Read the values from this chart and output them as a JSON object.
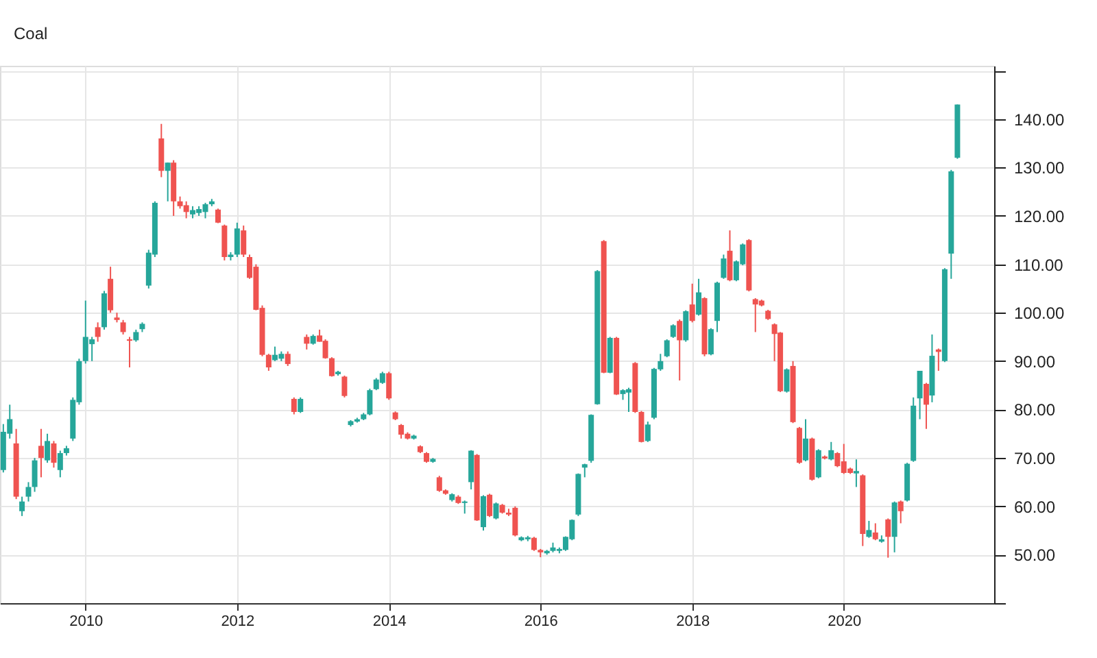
{
  "chart_data": {
    "type": "candlestick",
    "title": "Coal",
    "colors": [
      "#26a69a",
      "#26a69a",
      "#ef5350",
      "#26a69a",
      "#26a69a",
      "#26a69a",
      "#ef5350",
      "#26a69a",
      "#ef5350",
      "#26a69a",
      "#26a69a",
      "#26a69a",
      "#26a69a",
      "#26a69a",
      "#26a69a",
      "#ef5350",
      "#26a69a",
      "#ef5350",
      "#ef5350",
      "#ef5350",
      "#ef5350",
      "#26a69a",
      "#26a69a",
      "#26a69a",
      "#26a69a",
      "#ef5350",
      "#26a69a",
      "#ef5350",
      "#ef5350",
      "#ef5350",
      "#26a69a",
      "#26a69a",
      "#26a69a",
      "#26a69a",
      "#ef5350",
      "#ef5350",
      "#26a69a",
      "#26a69a",
      "#ef5350",
      "#ef5350",
      "#ef5350",
      "#ef5350",
      "#ef5350",
      "#26a69a",
      "#26a69a",
      "#ef5350",
      "#ef5350",
      "#26a69a",
      "#ef5350",
      "#26a69a",
      "#ef5350",
      "#ef5350",
      "#ef5350",
      "#26a69a",
      "#ef5350",
      "#26a69a",
      "#26a69a",
      "#26a69a",
      "#26a69a",
      "#26a69a",
      "#26a69a",
      "#ef5350",
      "#ef5350",
      "#ef5350",
      "#ef5350",
      "#26a69a",
      "#ef5350",
      "#ef5350",
      "#26a69a",
      "#ef5350",
      "#ef5350",
      "#26a69a",
      "#ef5350",
      "#26a69a",
      "#26a69a",
      "#ef5350",
      "#26a69a",
      "#ef5350",
      "#26a69a",
      "#ef5350",
      "#ef5350",
      "#ef5350",
      "#26a69a",
      "#26a69a",
      "#ef5350",
      "#ef5350",
      "#26a69a",
      "#26a69a",
      "#26a69a",
      "#26a69a",
      "#26a69a",
      "#26a69a",
      "#26a69a",
      "#26a69a",
      "#26a69a",
      "#ef5350",
      "#26a69a",
      "#ef5350",
      "#26a69a",
      "#26a69a",
      "#ef5350",
      "#ef5350",
      "#26a69a",
      "#26a69a",
      "#26a69a",
      "#26a69a",
      "#26a69a",
      "#ef5350",
      "#26a69a",
      "#ef5350",
      "#26a69a",
      "#ef5350",
      "#26a69a",
      "#26a69a",
      "#26a69a",
      "#ef5350",
      "#26a69a",
      "#26a69a",
      "#ef5350",
      "#ef5350",
      "#ef5350",
      "#ef5350",
      "#ef5350",
      "#ef5350",
      "#26a69a",
      "#ef5350",
      "#ef5350",
      "#26a69a",
      "#ef5350",
      "#26a69a",
      "#ef5350",
      "#26a69a",
      "#ef5350",
      "#ef5350",
      "#ef5350",
      "#26a69a",
      "#ef5350",
      "#26a69a",
      "#ef5350",
      "#26a69a",
      "#ef5350",
      "#26a69a",
      "#ef5350",
      "#26a69a",
      "#26a69a",
      "#26a69a",
      "#ef5350",
      "#26a69a",
      "#ef5350",
      "#26a69a",
      "#26a69a",
      "#26a69a"
    ],
    "x": [
      "2008-12",
      "2009-01",
      "2009-02",
      "2009-03",
      "2009-04",
      "2009-05",
      "2009-06",
      "2009-07",
      "2009-08",
      "2009-09",
      "2009-10",
      "2009-11",
      "2009-12",
      "2010-01",
      "2010-02",
      "2010-03",
      "2010-04",
      "2010-05",
      "2010-06",
      "2010-07",
      "2010-08",
      "2010-09",
      "2010-10",
      "2010-11",
      "2010-12",
      "2011-01",
      "2011-02",
      "2011-03",
      "2011-04",
      "2011-05",
      "2011-06",
      "2011-07",
      "2011-08",
      "2011-09",
      "2011-10",
      "2011-11",
      "2011-12",
      "2012-01",
      "2012-02",
      "2012-03",
      "2012-04",
      "2012-05",
      "2012-06",
      "2012-07",
      "2012-08",
      "2012-09",
      "2012-10",
      "2012-11",
      "2012-12",
      "2013-01",
      "2013-02",
      "2013-03",
      "2013-04",
      "2013-05",
      "2013-06",
      "2013-07",
      "2013-08",
      "2013-09",
      "2013-10",
      "2013-11",
      "2013-12",
      "2014-01",
      "2014-02",
      "2014-03",
      "2014-04",
      "2014-05",
      "2014-06",
      "2014-07",
      "2014-08",
      "2014-09",
      "2014-10",
      "2014-11",
      "2014-12",
      "2015-01",
      "2015-02",
      "2015-03",
      "2015-04",
      "2015-05",
      "2015-06",
      "2015-07",
      "2015-08",
      "2015-09",
      "2015-10",
      "2015-11",
      "2015-12",
      "2016-01",
      "2016-02",
      "2016-03",
      "2016-04",
      "2016-05",
      "2016-06",
      "2016-07",
      "2016-08",
      "2016-09",
      "2016-10",
      "2016-11",
      "2016-12",
      "2017-01",
      "2017-02",
      "2017-03",
      "2017-04",
      "2017-05",
      "2017-06",
      "2017-07",
      "2017-08",
      "2017-09",
      "2017-10",
      "2017-11",
      "2017-12",
      "2018-01",
      "2018-02",
      "2018-03",
      "2018-04",
      "2018-05",
      "2018-06",
      "2018-07",
      "2018-08",
      "2018-09",
      "2018-10",
      "2018-11",
      "2018-12",
      "2019-01",
      "2019-02",
      "2019-03",
      "2019-04",
      "2019-05",
      "2019-06",
      "2019-07",
      "2019-08",
      "2019-09",
      "2019-10",
      "2019-11",
      "2019-12",
      "2020-01",
      "2020-02",
      "2020-03",
      "2020-04",
      "2020-05",
      "2020-06",
      "2020-07",
      "2020-08",
      "2020-09",
      "2020-10",
      "2020-11",
      "2020-12",
      "2021-01",
      "2021-02",
      "2021-03",
      "2021-04",
      "2021-05",
      "2021-06",
      "2021-07"
    ],
    "ohlc": [
      [
        67.5,
        77,
        67,
        75.4
      ],
      [
        75,
        81,
        74,
        78
      ],
      [
        73,
        76,
        61.5,
        62
      ],
      [
        59,
        62,
        58,
        61
      ],
      [
        62,
        65,
        61,
        64
      ],
      [
        64,
        70,
        63,
        69.5
      ],
      [
        72.5,
        76,
        66,
        70
      ],
      [
        69.5,
        75,
        69,
        73.5
      ],
      [
        73,
        73.5,
        68,
        69
      ],
      [
        67.5,
        71.5,
        66,
        71
      ],
      [
        71,
        72.5,
        70.5,
        72
      ],
      [
        74,
        82.5,
        73.5,
        82
      ],
      [
        81.5,
        90.5,
        81,
        90
      ],
      [
        90,
        102.5,
        89.5,
        95
      ],
      [
        93.5,
        95,
        90,
        94.5
      ],
      [
        97,
        98,
        94,
        95
      ],
      [
        97,
        104.5,
        96.5,
        104
      ],
      [
        107,
        109.5,
        100,
        100.5
      ],
      [
        99,
        100,
        98,
        98.5
      ],
      [
        98,
        98.5,
        95.5,
        96
      ],
      [
        94.5,
        95,
        88.7,
        94.2
      ],
      [
        94.3,
        96.5,
        94,
        96
      ],
      [
        96.6,
        98,
        96,
        97.7
      ],
      [
        105.6,
        113,
        105,
        112.4
      ],
      [
        112,
        123,
        111.5,
        122.7
      ],
      [
        136,
        139,
        128,
        129.3
      ],
      [
        129.3,
        131,
        123,
        131
      ],
      [
        131,
        131.5,
        120,
        123
      ],
      [
        123,
        124,
        121.5,
        122
      ],
      [
        122.2,
        123,
        119.5,
        120.8
      ],
      [
        120.3,
        122,
        119.5,
        121.2
      ],
      [
        120.6,
        122,
        120,
        121.4
      ],
      [
        120.8,
        122.7,
        119.5,
        122.4
      ],
      [
        122.4,
        123.5,
        122,
        123
      ],
      [
        121.3,
        121.5,
        118.5,
        118.6
      ],
      [
        118,
        118.2,
        110.8,
        111.5
      ],
      [
        111.5,
        112.5,
        110.8,
        112
      ],
      [
        112,
        118.6,
        111.5,
        117.4
      ],
      [
        117,
        118,
        111.5,
        112
      ],
      [
        111.5,
        112,
        107,
        107.2
      ],
      [
        109.5,
        110,
        100.5,
        100.6
      ],
      [
        101,
        101.5,
        91,
        91.3
      ],
      [
        91.3,
        91.5,
        88,
        88.7
      ],
      [
        90.2,
        93,
        90,
        91.3
      ],
      [
        90.5,
        92,
        90,
        91.5
      ],
      [
        91.5,
        92,
        89,
        89.4
      ],
      [
        82.2,
        82.5,
        79,
        79.5
      ],
      [
        79.5,
        82.5,
        79.3,
        82.2
      ],
      [
        95,
        95.5,
        92.4,
        93.6
      ],
      [
        93.6,
        95.5,
        93.4,
        95.2
      ],
      [
        95.3,
        96.5,
        94,
        94
      ],
      [
        94.2,
        94.5,
        90.5,
        90.6
      ],
      [
        90.6,
        90.8,
        86.8,
        86.9
      ],
      [
        87.3,
        88,
        87,
        87.8
      ],
      [
        86.8,
        87,
        82.5,
        82.8
      ],
      [
        76.8,
        77.8,
        76.5,
        77.6
      ],
      [
        77.5,
        78.3,
        77.3,
        78
      ],
      [
        78,
        79.3,
        77.8,
        79
      ],
      [
        79,
        84.3,
        78.8,
        84
      ],
      [
        84.2,
        86.5,
        84,
        86.2
      ],
      [
        85.5,
        87.8,
        85.3,
        87.5
      ],
      [
        87.5,
        87.8,
        82,
        82.3
      ],
      [
        79.4,
        79.6,
        77.8,
        78
      ],
      [
        76.8,
        77,
        74,
        74.8
      ],
      [
        75,
        75.3,
        73.8,
        74
      ],
      [
        74,
        74.8,
        73.8,
        74.6
      ],
      [
        72.4,
        72.6,
        71,
        71.2
      ],
      [
        71,
        71.2,
        69,
        69.2
      ],
      [
        69.2,
        70,
        69,
        69.8
      ],
      [
        66,
        66.3,
        63,
        63.2
      ],
      [
        63.3,
        63.5,
        62.4,
        62.6
      ],
      [
        61.3,
        62.7,
        61,
        62.5
      ],
      [
        62,
        62.3,
        60.5,
        60.7
      ],
      [
        60.7,
        61.2,
        58.5,
        61
      ],
      [
        65,
        71.6,
        63.5,
        71.5
      ],
      [
        70.6,
        70.8,
        57,
        57.1
      ],
      [
        55.7,
        62.3,
        55,
        62.1
      ],
      [
        62.4,
        62.6,
        57.8,
        58
      ],
      [
        57.5,
        60.8,
        57.3,
        60.6
      ],
      [
        60.3,
        60.5,
        58.5,
        58.7
      ],
      [
        58.7,
        59.5,
        58,
        58.3
      ],
      [
        59.7,
        60,
        53.8,
        54
      ],
      [
        53,
        53.8,
        52.8,
        53.6
      ],
      [
        53.2,
        53.9,
        52.8,
        53.6
      ],
      [
        53.5,
        53.7,
        50.8,
        51
      ],
      [
        51,
        51.2,
        49.5,
        50.5
      ],
      [
        50.3,
        51,
        50,
        50.8
      ],
      [
        50.8,
        52.5,
        50.5,
        51.5
      ],
      [
        50.8,
        51.5,
        50.3,
        51.2
      ],
      [
        51,
        53.8,
        50.8,
        53.7
      ],
      [
        53.2,
        57.3,
        53,
        57.2
      ],
      [
        58.3,
        66.8,
        58,
        66.7
      ],
      [
        68,
        68.8,
        66,
        68.7
      ],
      [
        69.4,
        79,
        69,
        78.9
      ],
      [
        81.1,
        108.8,
        81,
        108.6
      ],
      [
        114.8,
        115,
        87.5,
        87.6
      ],
      [
        87.6,
        95,
        87.5,
        94.8
      ],
      [
        94.8,
        95,
        83,
        83.1
      ],
      [
        83.2,
        84.2,
        82,
        84
      ],
      [
        83.5,
        84.5,
        79.5,
        84.2
      ],
      [
        89.6,
        89.8,
        79.3,
        79.5
      ],
      [
        79.5,
        79.7,
        73.2,
        73.3
      ],
      [
        73.5,
        77.5,
        73.3,
        76.9
      ],
      [
        78.3,
        88.6,
        78,
        88.4
      ],
      [
        88.3,
        91.5,
        88,
        90
      ],
      [
        91,
        94.5,
        90.8,
        94.3
      ],
      [
        95,
        97.6,
        94.8,
        97.4
      ],
      [
        98.3,
        98.6,
        86,
        94.3
      ],
      [
        94.3,
        100.5,
        94,
        100.3
      ],
      [
        101.7,
        106,
        98,
        98.3
      ],
      [
        99.6,
        107,
        99.4,
        104.2
      ],
      [
        103,
        103.2,
        91,
        91.4
      ],
      [
        91.4,
        96.8,
        91.2,
        96.6
      ],
      [
        98.3,
        106.4,
        96,
        106.2
      ],
      [
        107.2,
        112,
        107,
        111.2
      ],
      [
        112.8,
        117,
        106.5,
        106.7
      ],
      [
        106.7,
        110.8,
        106.5,
        110.6
      ],
      [
        110,
        114.3,
        109.8,
        114.1
      ],
      [
        115,
        115.2,
        104.4,
        104.6
      ],
      [
        102.8,
        103,
        96,
        101.7
      ],
      [
        102.5,
        102.7,
        101.3,
        101.5
      ],
      [
        100.4,
        100.6,
        98.5,
        98.7
      ],
      [
        97.6,
        97.8,
        90,
        95.6
      ],
      [
        95.9,
        96,
        83.6,
        83.8
      ],
      [
        83.7,
        88.5,
        83.5,
        88.3
      ],
      [
        89,
        90,
        77.2,
        77.4
      ],
      [
        76.2,
        76.4,
        68.8,
        69
      ],
      [
        69.5,
        78,
        69.3,
        74
      ],
      [
        74,
        74.2,
        65.3,
        65.5
      ],
      [
        66,
        71.8,
        65.8,
        71.6
      ],
      [
        70.3,
        70.5,
        69.7,
        69.9
      ],
      [
        69.7,
        73.3,
        69.5,
        71.6
      ],
      [
        71,
        71.2,
        68.1,
        68.3
      ],
      [
        69.3,
        72.9,
        66.7,
        66.9
      ],
      [
        67.8,
        68,
        66.7,
        66.9
      ],
      [
        66.8,
        69.7,
        64,
        67.3
      ],
      [
        66.4,
        66.6,
        51.8,
        54.3
      ],
      [
        53.7,
        57,
        53.5,
        55.1
      ],
      [
        54.6,
        56.5,
        53,
        53.2
      ],
      [
        52.7,
        54,
        52.5,
        53.2
      ],
      [
        57.3,
        57.5,
        49.4,
        53.7
      ],
      [
        53.7,
        61,
        50.5,
        60.8
      ],
      [
        61,
        61.2,
        56.5,
        59
      ],
      [
        61.2,
        69,
        61,
        68.8
      ],
      [
        69.4,
        82.5,
        69.2,
        80.8
      ],
      [
        82.3,
        88,
        78,
        88
      ],
      [
        85.3,
        85.5,
        76,
        81
      ],
      [
        82.9,
        95.5,
        81.5,
        91.1
      ],
      [
        92.4,
        92.6,
        88,
        91.9
      ],
      [
        90,
        109.2,
        89.8,
        109
      ],
      [
        112.2,
        129.5,
        107,
        129.2
      ],
      [
        132,
        143,
        131.8,
        143
      ]
    ],
    "xlim": [
      "2008-11-15",
      "2021-12-25"
    ],
    "xticks": [
      "2010",
      "2012",
      "2014",
      "2016",
      "2018",
      "2020"
    ],
    "ylim": [
      40,
      151
    ],
    "yticks": [
      {
        "value": 40,
        "label": null
      },
      {
        "value": 50,
        "label": "50.00"
      },
      {
        "value": 60,
        "label": "60.00"
      },
      {
        "value": 70,
        "label": "70.00"
      },
      {
        "value": 80,
        "label": "80.00"
      },
      {
        "value": 90,
        "label": "90.00"
      },
      {
        "value": 100,
        "label": "100.00"
      },
      {
        "value": 110,
        "label": "110.00"
      },
      {
        "value": 120,
        "label": "120.00"
      },
      {
        "value": 130,
        "label": "130.00"
      },
      {
        "value": 140,
        "label": "140.00"
      },
      {
        "value": 150,
        "label": null
      }
    ],
    "grid": true
  }
}
